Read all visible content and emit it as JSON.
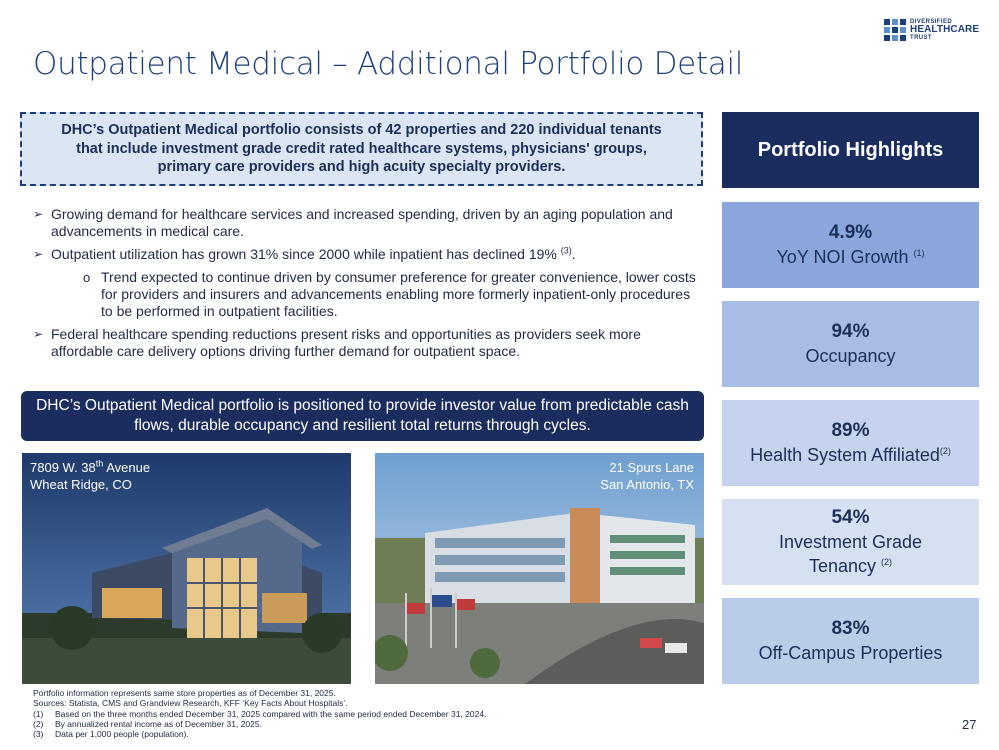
{
  "title": "Outpatient Medical – Additional Portfolio Detail",
  "logo": {
    "line1": "DIVERSIFIED",
    "line2": "HEALTHCARE",
    "line3": "TRUST"
  },
  "summary": "DHC’s Outpatient Medical portfolio consists of 42 properties and 220 individual tenants that include investment grade credit rated healthcare systems, physicians' groups, primary care providers and high acuity specialty providers.",
  "bullets": {
    "b1": "Growing demand for healthcare services and increased spending, driven by an aging population and advancements in medical care.",
    "b2": "Outpatient utilization has grown 31% since 2000 while inpatient has declined 19%",
    "b2_sup": "(3)",
    "b2_tail": ".",
    "b2_sub": "Trend expected to continue driven by consumer preference for greater convenience, lower costs for providers and insurers and advancements enabling more formerly inpatient-only procedures to be performed in outpatient facilities.",
    "b3": "Federal healthcare spending reductions present risks and opportunities as providers seek more affordable care delivery options driving further demand for outpatient space."
  },
  "value_statement": "DHC’s Outpatient Medical portfolio is positioned to provide investor value from predictable cash flows, durable occupancy and resilient total returns through cycles.",
  "photos": {
    "p1_line1_a": "7809 W. 38",
    "p1_line1_sup": "th",
    "p1_line1_b": " Avenue",
    "p1_line2": "Wheat Ridge, CO",
    "p2_line1": "21 Spurs Lane",
    "p2_line2": "San Antonio, TX"
  },
  "highlights": {
    "heading": "Portfolio Highlights",
    "items": [
      {
        "value": "4.9%",
        "label": "YoY NOI Growth",
        "sup": "(1)"
      },
      {
        "value": "94%",
        "label": "Occupancy",
        "sup": ""
      },
      {
        "value": "89%",
        "label": "Health System Affiliated",
        "sup": "(2)"
      },
      {
        "value": "54%",
        "label": "Investment Grade",
        "label2": "Tenancy",
        "sup": "(2)"
      },
      {
        "value": "83%",
        "label": "Off-Campus Properties",
        "sup": ""
      }
    ]
  },
  "footnotes": {
    "line1": "Portfolio information represents same store properties as of December 31, 2025.",
    "line2": "Sources: Statista, CMS and Grandview Research, KFF ‘Key Facts About Hospitals’.",
    "n1": "(1)",
    "t1": "Based on the three months ended December 31, 2025 compared with the same period ended December 31, 2024.",
    "n2": "(2)",
    "t2": "By annualized rental income as of December 31, 2025.",
    "n3": "(3)",
    "t3": "Data per 1,000 people (population)."
  },
  "page_number": "27",
  "colors": {
    "navy": "#1b2d5e",
    "title_blue": "#1c3f7a",
    "hl1": "#8aa6dc",
    "hl2": "#a8bde6",
    "hl3": "#c5d3ee",
    "hl4": "#d6e0f3",
    "hl5": "#b9cde9"
  }
}
